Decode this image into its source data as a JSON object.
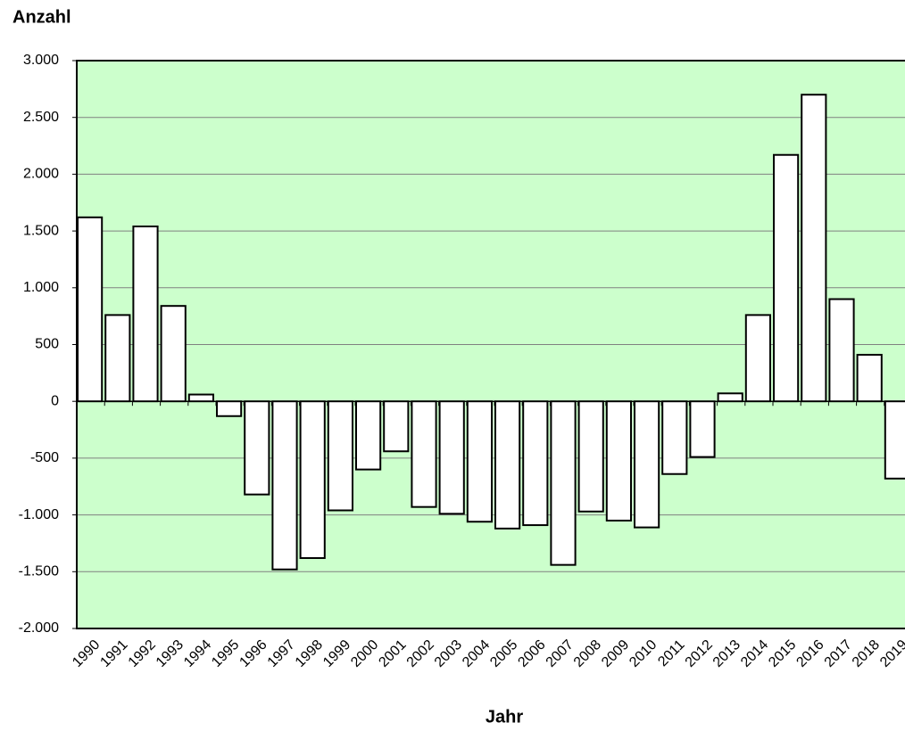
{
  "chart_data": {
    "type": "bar",
    "y_label": "Anzahl",
    "x_label": "Jahr",
    "categories": [
      "1990",
      "1991",
      "1992",
      "1993",
      "1994",
      "1995",
      "1996",
      "1997",
      "1998",
      "1999",
      "2000",
      "2001",
      "2002",
      "2003",
      "2004",
      "2005",
      "2006",
      "2007",
      "2008",
      "2009",
      "2010",
      "2011",
      "2012",
      "2013",
      "2014",
      "2015",
      "2016",
      "2017",
      "2018",
      "2019"
    ],
    "values": [
      1620,
      760,
      1540,
      840,
      60,
      -130,
      -820,
      -1480,
      -1380,
      -960,
      -600,
      -440,
      -930,
      -990,
      -1060,
      -1120,
      -1090,
      -1440,
      -970,
      -1050,
      -1110,
      -640,
      -490,
      70,
      760,
      2170,
      2700,
      900,
      410,
      -680
    ],
    "color": "#ffffff",
    "background": "#ccffcc",
    "ylim": [
      -2000,
      3000
    ],
    "yticks": [
      {
        "value": -2000,
        "label": "-2.000"
      },
      {
        "value": -1500,
        "label": "-1.500"
      },
      {
        "value": -1000,
        "label": "-1.000"
      },
      -500,
      0,
      500,
      {
        "value": 1000,
        "label": "1.000"
      },
      {
        "value": 1500,
        "label": "1.500"
      },
      {
        "value": 2000,
        "label": "2.000"
      },
      {
        "value": 2500,
        "label": "2.500"
      },
      {
        "value": 3000,
        "label": "3.000"
      }
    ],
    "grid": true
  }
}
